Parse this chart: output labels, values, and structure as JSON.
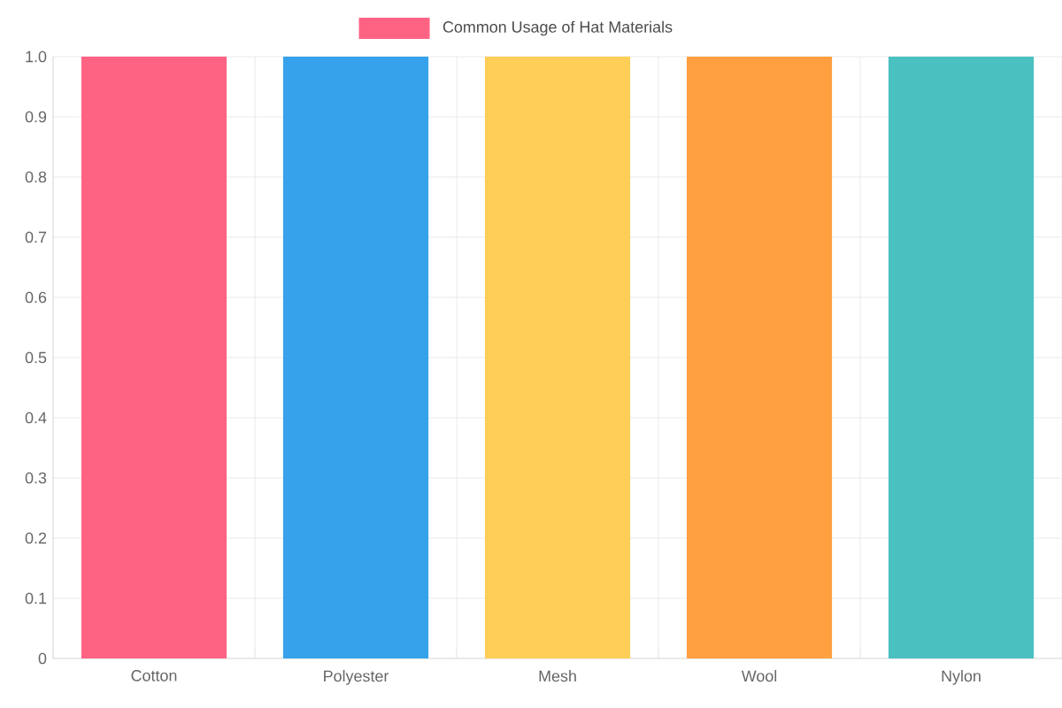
{
  "chart_data": {
    "type": "bar",
    "categories": [
      "Cotton",
      "Polyester",
      "Mesh",
      "Wool",
      "Nylon"
    ],
    "series": [
      {
        "name": "Common Usage of Hat Materials",
        "colors": [
          "#ff6384",
          "#36a2eb",
          "#ffce56",
          "#ff9f40",
          "#4bc0c0"
        ],
        "values": [
          1,
          1,
          1,
          1,
          1
        ]
      }
    ],
    "ylim": [
      0,
      1
    ],
    "yticks": [
      0,
      0.1,
      0.2,
      0.3,
      0.4,
      0.5,
      0.6,
      0.7,
      0.8,
      0.9,
      {
        "value": 1,
        "label": "1.0"
      }
    ],
    "grid": true,
    "legend": "top"
  }
}
